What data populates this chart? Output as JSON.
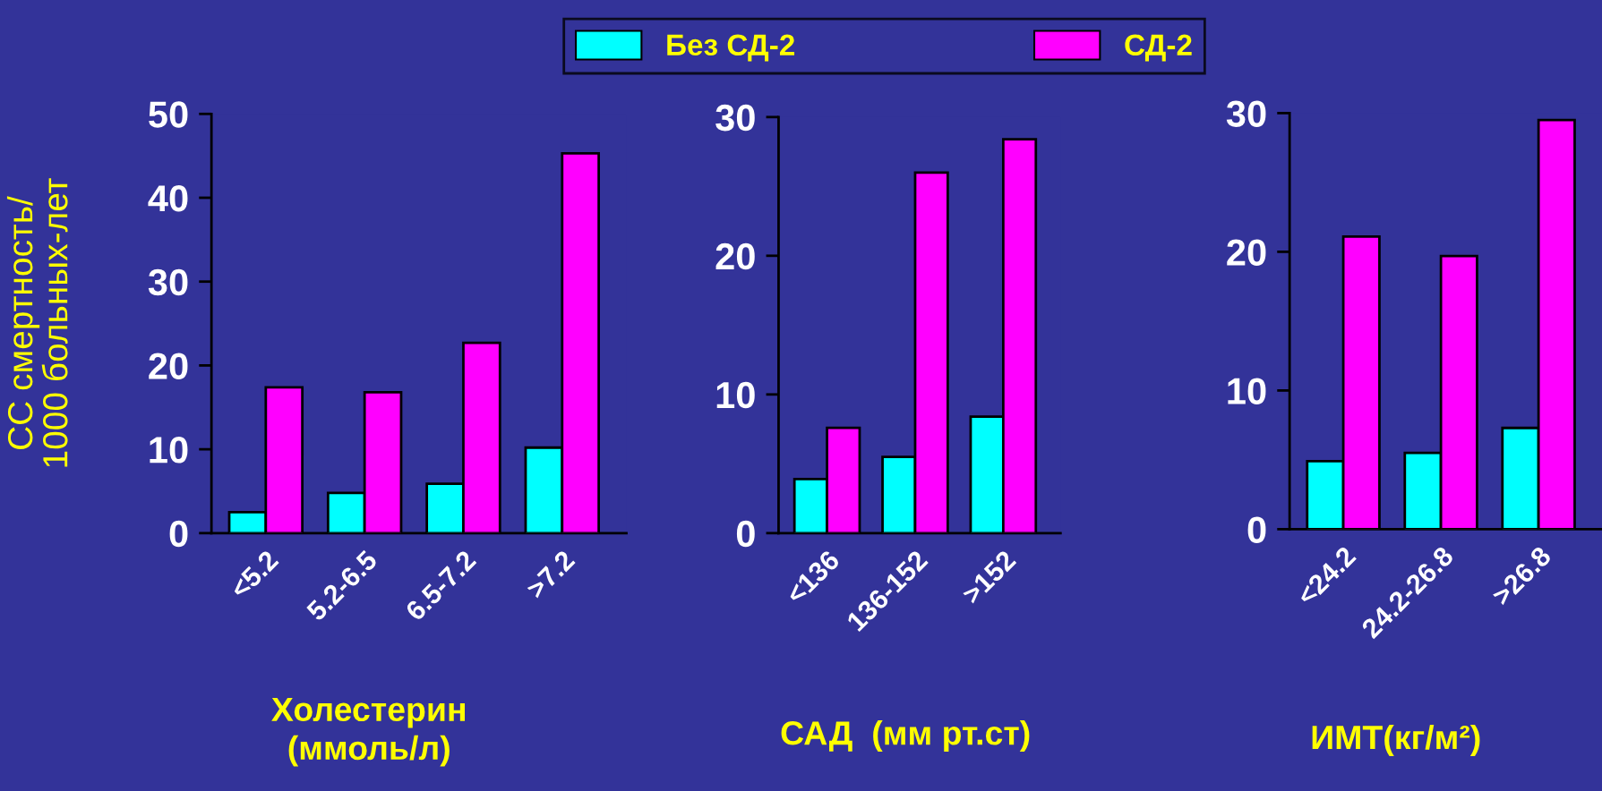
{
  "chart_data": [
    {
      "type": "bar",
      "ylabel": "СС смертность/\n1000 больных-лет",
      "xlabel": "Холестерин\n(ммоль/л)",
      "categories": [
        "<5.2",
        "5.2-6.5",
        "6.5-7.2",
        ">7.2"
      ],
      "ylim": [
        0,
        50
      ],
      "yticks": [
        0,
        10,
        20,
        30,
        40,
        50
      ],
      "legend": "top",
      "series": [
        {
          "name": "Без СД-2",
          "color": "#00ffff",
          "values": [
            2.5,
            4.8,
            5.9,
            10.2
          ]
        },
        {
          "name": "СД-2",
          "color": "#ff00ff",
          "values": [
            17.4,
            16.8,
            22.7,
            45.3
          ]
        }
      ]
    },
    {
      "type": "bar",
      "xlabel": "САД  (мм рт.ст)",
      "categories": [
        "<136",
        "136-152",
        ">152"
      ],
      "ylim": [
        0,
        30
      ],
      "yticks": [
        0,
        10,
        20,
        30
      ],
      "series": [
        {
          "color": "#00ffff",
          "values": [
            3.9,
            5.5,
            8.4
          ]
        },
        {
          "color": "#ff00ff",
          "values": [
            7.6,
            26.0,
            28.4
          ]
        }
      ]
    },
    {
      "type": "bar",
      "xlabel": "ИМТ(кг/м²)",
      "categories": [
        "<24.2",
        "24.2-26.8",
        ">26.8"
      ],
      "ylim": [
        0,
        30
      ],
      "yticks": [
        0,
        10,
        20,
        30
      ],
      "series": [
        {
          "color": "#00ffff",
          "values": [
            4.9,
            5.5,
            7.3
          ]
        },
        {
          "color": "#ff00ff",
          "values": [
            21.1,
            19.7,
            29.5
          ]
        }
      ]
    }
  ]
}
